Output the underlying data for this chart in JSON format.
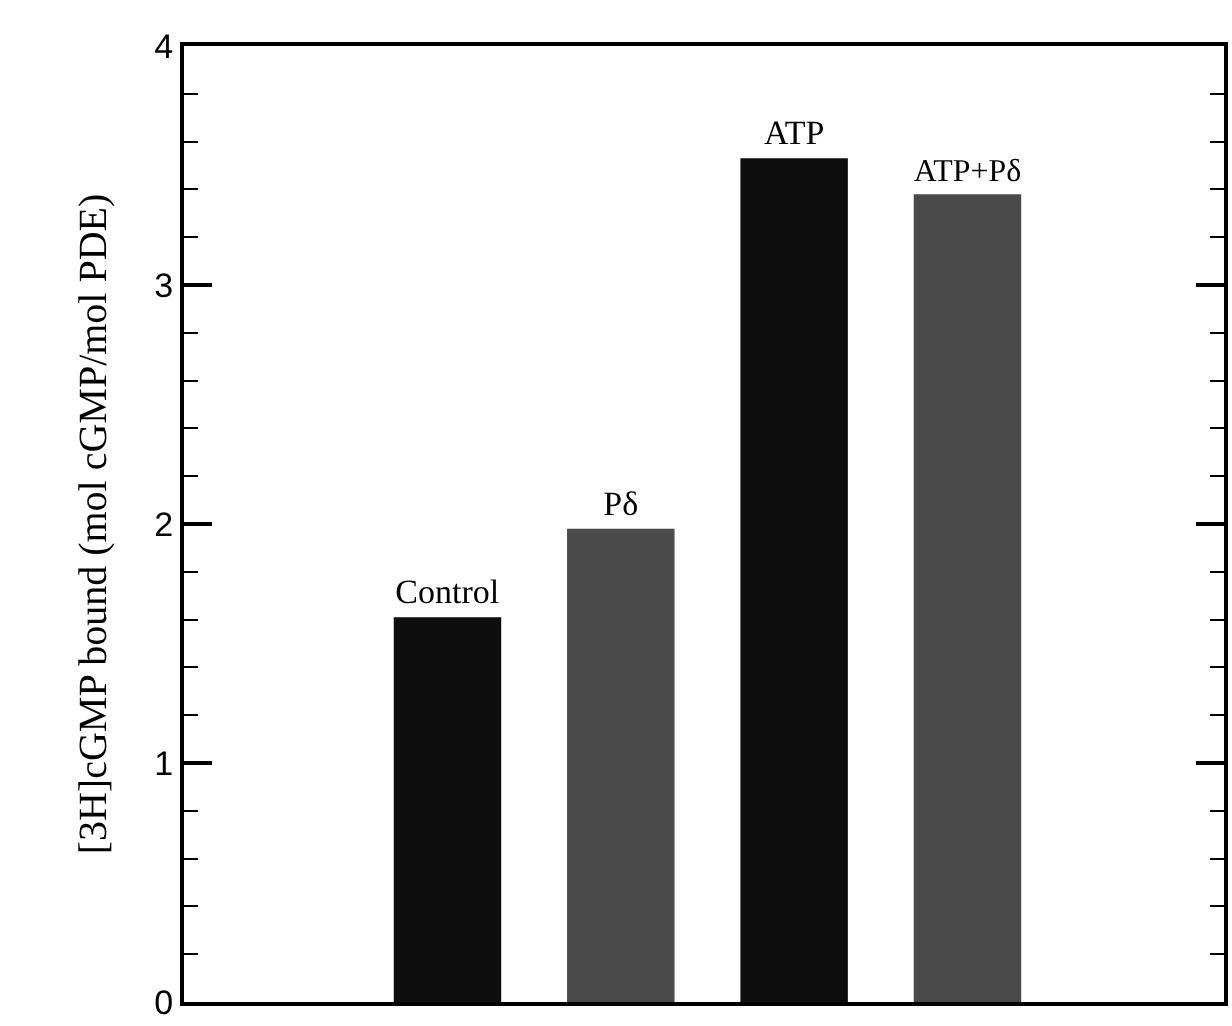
{
  "chart_data": {
    "type": "bar",
    "ylabel": "[3H]cGMP bound (mol cGMP/mol PDE)",
    "categories": [
      "Control",
      "Pδ",
      "ATP",
      "ATP+Pδ"
    ],
    "values": [
      1.61,
      1.98,
      3.53,
      3.38
    ],
    "colors": [
      "#0d0d0d",
      "#4a4a4a",
      "#0d0d0d",
      "#4a4a4a"
    ],
    "ylim": [
      0,
      4
    ],
    "yticks": [
      0,
      1,
      2,
      3,
      4
    ],
    "tick_labels": "y"
  }
}
